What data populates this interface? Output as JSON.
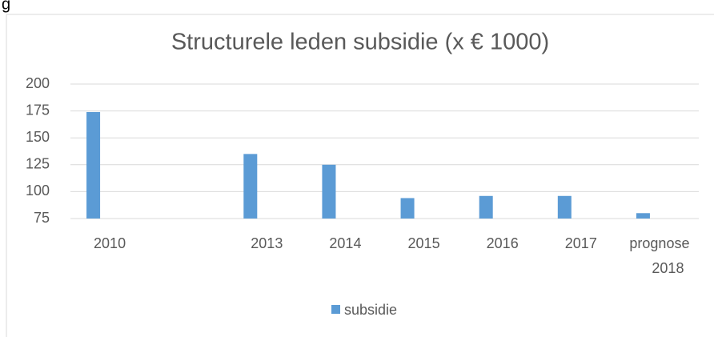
{
  "page_fragment": "g",
  "chart_data": {
    "type": "bar",
    "title": "Structurele leden subsidie (x € 1000)",
    "categories": [
      "2010",
      null,
      "2013",
      "2014",
      "2015",
      "2016",
      "2017",
      "prognose 2018"
    ],
    "series": [
      {
        "name": "subsidie",
        "color": "#5b9bd5",
        "values": [
          174,
          null,
          135,
          125,
          94,
          96,
          96,
          80
        ]
      }
    ],
    "ylim": [
      75,
      200
    ],
    "yticks": [
      75,
      100,
      125,
      150,
      175,
      200
    ],
    "grid": true,
    "legend": "bottom"
  }
}
